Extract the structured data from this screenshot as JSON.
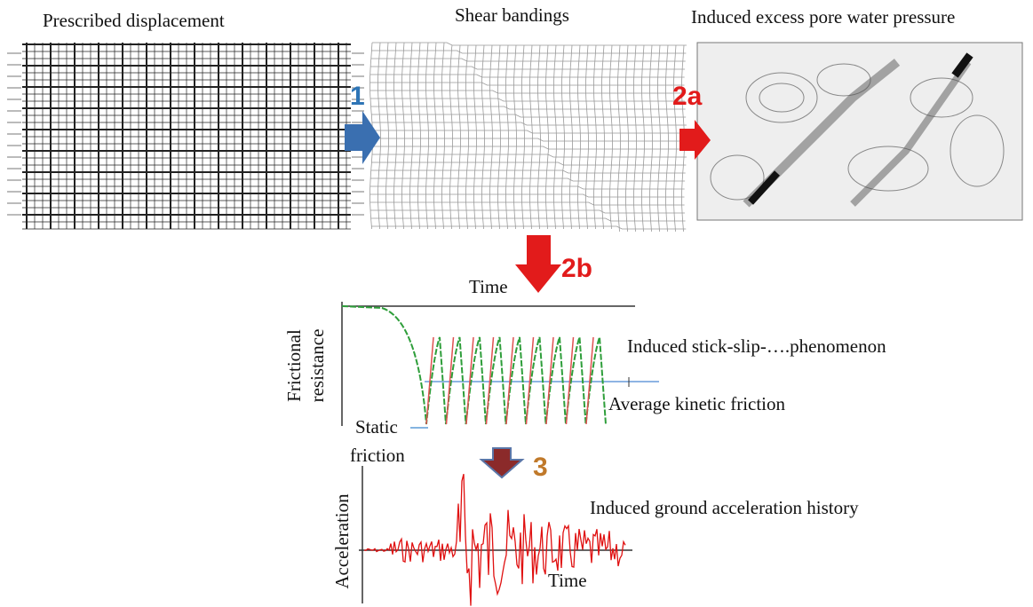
{
  "panels": {
    "prescribed": {
      "title": "Prescribed displacement"
    },
    "shear": {
      "title": "Shear bandings"
    },
    "pore": {
      "title": "Induced excess pore water pressure"
    }
  },
  "steps": {
    "s1": "1",
    "s2a": "2a",
    "s2b": "2b",
    "s3": "3"
  },
  "friction_plot": {
    "x_label": "Time",
    "y_label_lines": [
      "Frictional",
      "resistance"
    ],
    "annotation": "Induced stick-slip-….phenomenon",
    "kinetic_label": "Average kinetic friction",
    "static_label_lines": [
      "Static",
      "friction"
    ]
  },
  "acceleration_plot": {
    "y_label": "Acceleration",
    "annotation": "Induced ground acceleration history",
    "x_label": "Time"
  }
}
